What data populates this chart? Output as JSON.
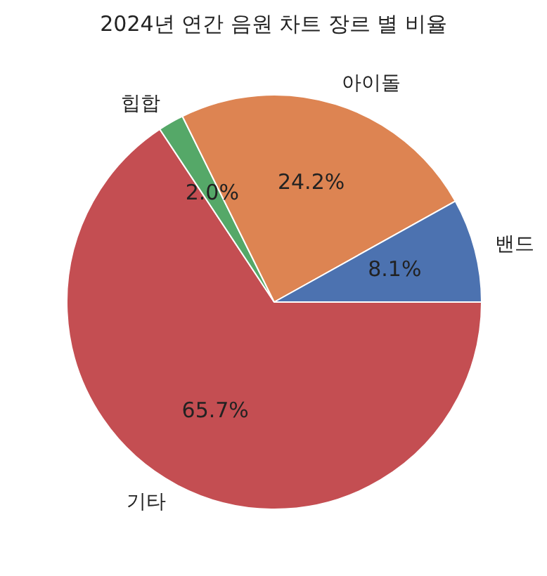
{
  "chart_data": {
    "type": "pie",
    "title": "2024년 연간 음원 차트 장르 별 비율",
    "categories": [
      "밴드",
      "아이돌",
      "힙합",
      "기타"
    ],
    "values": [
      8.1,
      24.2,
      2.0,
      65.7
    ],
    "colors": [
      "#4c72b0",
      "#dd8452",
      "#55a868",
      "#c44e52"
    ],
    "value_labels": [
      "8.1%",
      "24.2%",
      "2.0%",
      "65.7%"
    ]
  }
}
